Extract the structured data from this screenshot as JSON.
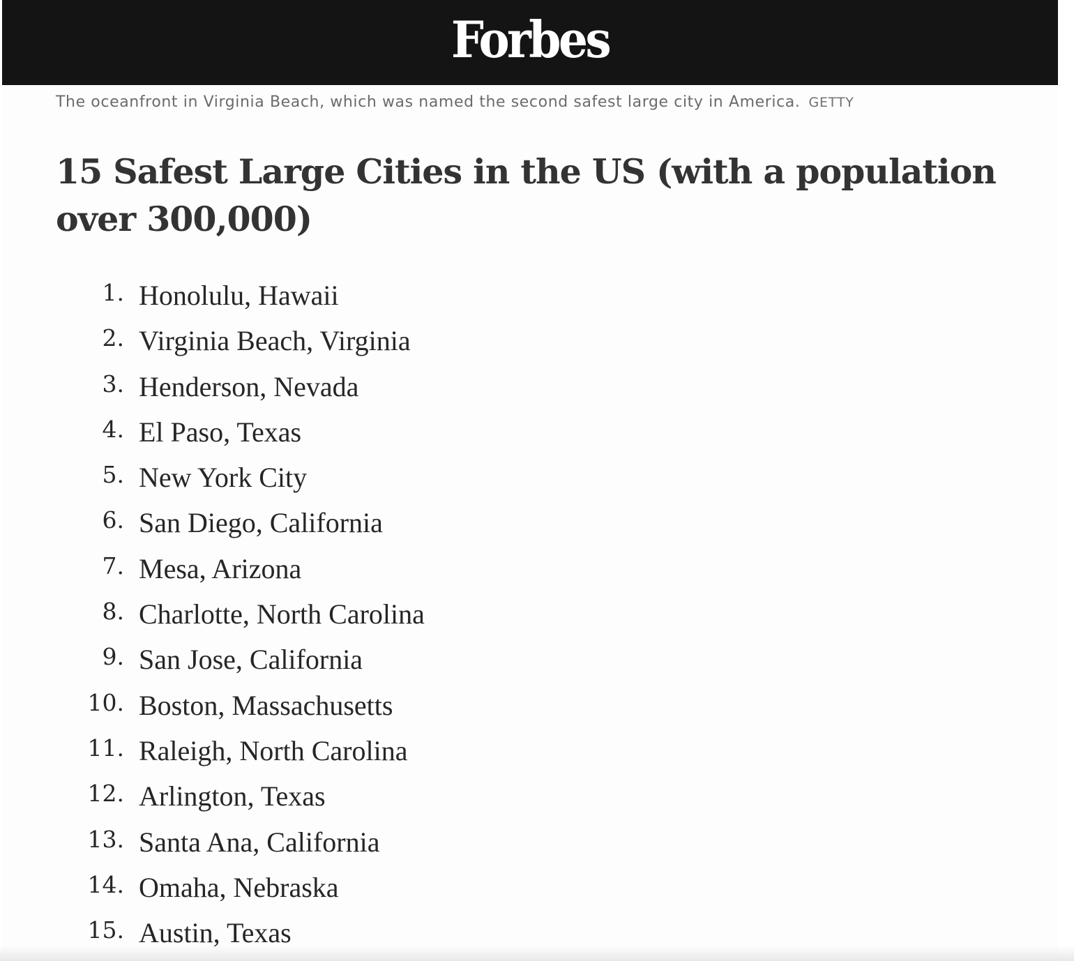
{
  "masthead": {
    "logo": "Forbes"
  },
  "caption": {
    "text": "The oceanfront in Virginia Beach, which was named the second safest large city in America.",
    "credit": "GETTY"
  },
  "heading": "15 Safest Large Cities in the US (with a population over 300,000)",
  "cities": [
    {
      "num": "1.",
      "name": "Honolulu, Hawaii"
    },
    {
      "num": "2.",
      "name": "Virginia Beach, Virginia"
    },
    {
      "num": "3.",
      "name": "Henderson, Nevada"
    },
    {
      "num": "4.",
      "name": "El Paso, Texas"
    },
    {
      "num": "5.",
      "name": "New York City"
    },
    {
      "num": "6.",
      "name": "San Diego, California"
    },
    {
      "num": "7.",
      "name": "Mesa, Arizona"
    },
    {
      "num": "8.",
      "name": "Charlotte, North Carolina"
    },
    {
      "num": "9.",
      "name": "San Jose, California"
    },
    {
      "num": "10.",
      "name": "Boston, Massachusetts"
    },
    {
      "num": "11.",
      "name": "Raleigh, North Carolina"
    },
    {
      "num": "12.",
      "name": "Arlington, Texas"
    },
    {
      "num": "13.",
      "name": "Santa Ana, California"
    },
    {
      "num": "14.",
      "name": "Omaha, Nebraska"
    },
    {
      "num": "15.",
      "name": "Austin, Texas"
    }
  ]
}
